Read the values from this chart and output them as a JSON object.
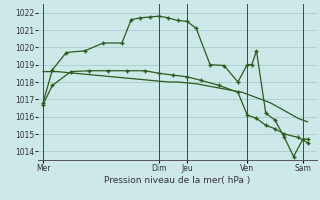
{
  "xlabel": "Pression niveau de la mer( hPa )",
  "background_color": "#cce8e8",
  "grid_color": "#aacccc",
  "line_color": "#2d5a1e",
  "ylim": [
    1013.5,
    1022.5
  ],
  "yticks": [
    1014,
    1015,
    1016,
    1017,
    1018,
    1019,
    1020,
    1021,
    1022
  ],
  "xlim": [
    0,
    30
  ],
  "day_labels": [
    "Mer",
    "Dim",
    "Jeu",
    "Ven",
    "Sam"
  ],
  "day_positions": [
    0.5,
    13.0,
    16.0,
    22.5,
    28.5
  ],
  "vline_positions": [
    0.5,
    13.0,
    16.0,
    22.5,
    28.5
  ],
  "series1_x": [
    0.5,
    2,
    3,
    4,
    5,
    6,
    7,
    8,
    9,
    10,
    11,
    12,
    13,
    14,
    15,
    16,
    17,
    18,
    19,
    20,
    21,
    22,
    23,
    24,
    25,
    26,
    27,
    28,
    29
  ],
  "series1_y": [
    1018.6,
    1018.6,
    1018.55,
    1018.5,
    1018.45,
    1018.4,
    1018.35,
    1018.3,
    1018.25,
    1018.2,
    1018.15,
    1018.1,
    1018.05,
    1018.0,
    1018.0,
    1017.95,
    1017.9,
    1017.8,
    1017.7,
    1017.6,
    1017.5,
    1017.4,
    1017.2,
    1017.0,
    1016.8,
    1016.5,
    1016.2,
    1015.9,
    1015.7
  ],
  "series2_x": [
    0.5,
    1.5,
    3.5,
    5.5,
    7.5,
    9.5,
    11.5,
    13.0,
    14.5,
    16.0,
    17.5,
    19.5,
    21.5,
    22.5,
    23.5,
    24.5,
    25.5,
    26.5,
    28.0,
    29.0
  ],
  "series2_y": [
    1016.7,
    1017.8,
    1018.6,
    1018.65,
    1018.65,
    1018.65,
    1018.65,
    1018.5,
    1018.4,
    1018.3,
    1018.1,
    1017.8,
    1017.4,
    1016.1,
    1015.9,
    1015.5,
    1015.3,
    1015.0,
    1014.8,
    1014.5
  ],
  "series3_x": [
    0.5,
    1.5,
    3.0,
    5.0,
    7.0,
    9.0,
    10.0,
    11.0,
    12.0,
    13.0,
    14.0,
    15.0,
    16.0,
    17.0,
    18.5,
    20.0,
    21.5,
    22.5,
    23.0,
    23.5,
    24.5,
    25.5,
    26.5,
    27.5,
    28.5,
    29.0
  ],
  "series3_y": [
    1016.8,
    1018.7,
    1019.7,
    1019.8,
    1020.25,
    1020.25,
    1021.6,
    1021.7,
    1021.75,
    1021.8,
    1021.7,
    1021.55,
    1021.5,
    1021.1,
    1019.0,
    1018.95,
    1018.0,
    1019.0,
    1019.0,
    1019.8,
    1016.2,
    1015.8,
    1014.8,
    1013.7,
    1014.7,
    1014.7
  ]
}
